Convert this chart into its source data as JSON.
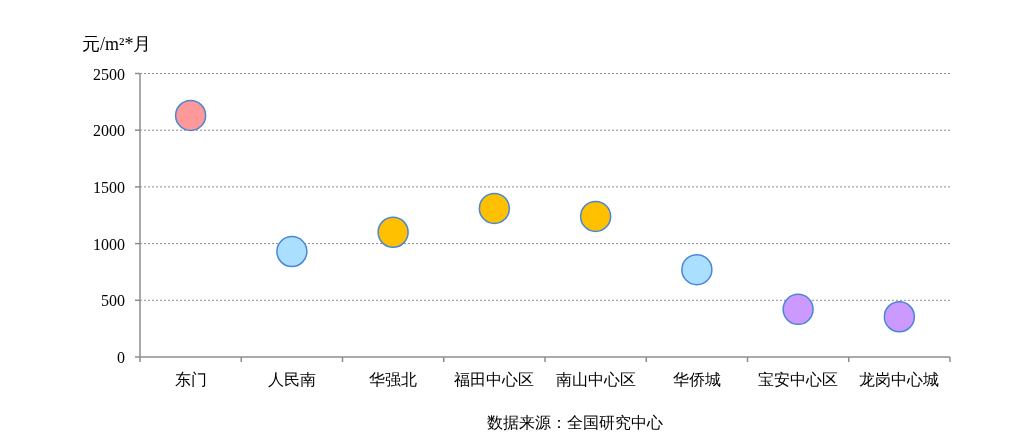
{
  "chart_data": {
    "type": "scatter",
    "ylabel": "元/m²*月",
    "categories": [
      "东门",
      "人民南",
      "华强北",
      "福田中心区",
      "南山中心区",
      "华侨城",
      "宝安中心区",
      "龙岗中心城"
    ],
    "values": [
      2130,
      930,
      1100,
      1310,
      1240,
      770,
      420,
      355
    ],
    "colors": [
      "#ff9999",
      "#aadfff",
      "#ffc000",
      "#ffc000",
      "#ffc000",
      "#aadfff",
      "#cc99ff",
      "#cc99ff"
    ],
    "ylim": [
      0,
      2500
    ],
    "yticks": [
      0,
      500,
      1000,
      1500,
      2000,
      2500
    ],
    "grid": "y",
    "marker": "circle",
    "annotations": [
      "数据来源：全国研究中心"
    ]
  }
}
